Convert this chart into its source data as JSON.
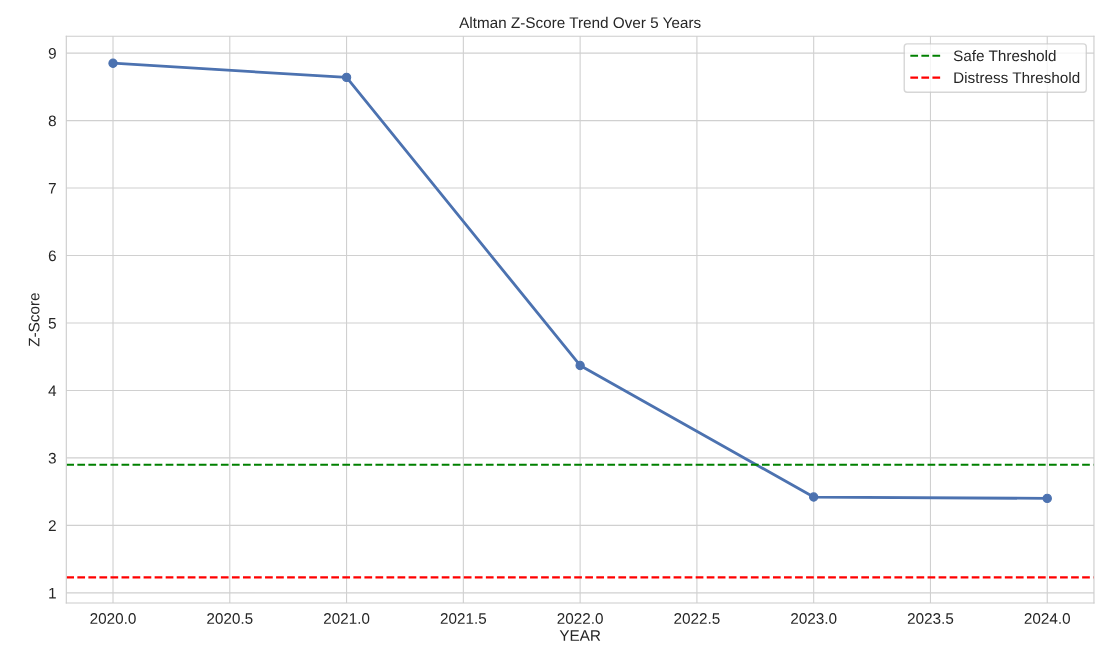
{
  "chart_data": {
    "type": "line",
    "title": "Altman Z-Score Trend Over 5 Years",
    "xlabel": "YEAR",
    "ylabel": "Z-Score",
    "x": [
      2020,
      2021,
      2022,
      2023,
      2024
    ],
    "series": [
      {
        "color": "#4c72b0",
        "values": [
          8.85,
          8.64,
          4.37,
          2.42,
          2.4
        ]
      }
    ],
    "marker": "circle",
    "line_style": "solid",
    "xlim": [
      2019.8,
      2024.2
    ],
    "xticks": [
      {
        "value": 2020,
        "label": "2020.0"
      },
      {
        "value": 2020.5,
        "label": "2020.5"
      },
      {
        "value": 2021,
        "label": "2021.0"
      },
      {
        "value": 2021.5,
        "label": "2021.5"
      },
      {
        "value": 2022,
        "label": "2022.0"
      },
      {
        "value": 2022.5,
        "label": "2022.5"
      },
      {
        "value": 2023,
        "label": "2023.0"
      },
      {
        "value": 2023.5,
        "label": "2023.5"
      },
      {
        "value": 2024,
        "label": "2024.0"
      }
    ],
    "ylim": [
      0.85,
      9.25
    ],
    "yticks": [
      1,
      2,
      3,
      4,
      5,
      6,
      7,
      8,
      9
    ],
    "ref_lines": [
      {
        "axis": "y",
        "value": 2.9,
        "label": "Safe Threshold",
        "color": "#008000",
        "line_style": "dashed"
      },
      {
        "axis": "y",
        "value": 1.23,
        "label": "Distress Threshold",
        "color": "#ff0000",
        "line_style": "dashed"
      }
    ],
    "grid": true,
    "legend": "top right"
  }
}
